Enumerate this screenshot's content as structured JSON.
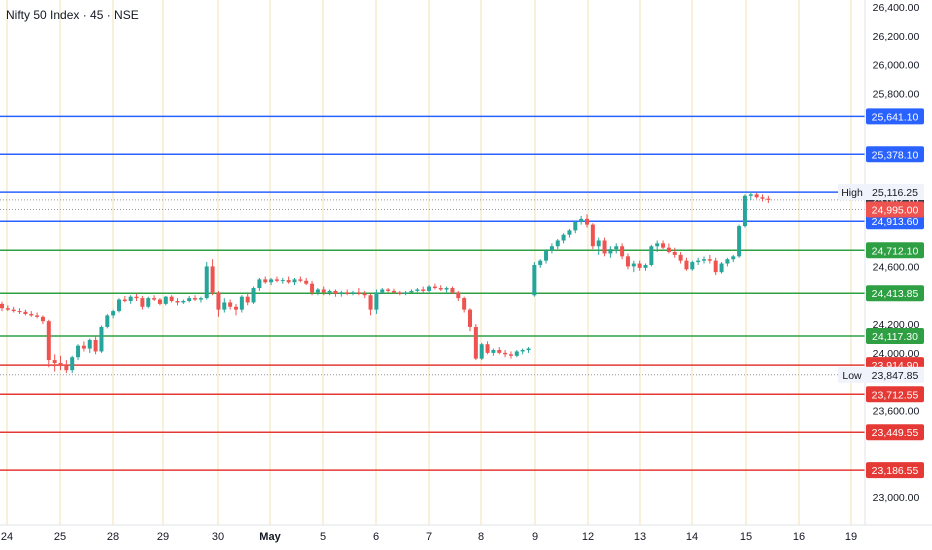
{
  "header": {
    "title": "Nifty 50 Index · 45 · NSE"
  },
  "colors": {
    "up": "#26a69a",
    "down": "#ef5350",
    "blue_line": "#2962ff",
    "green_line": "#2ea043",
    "red_line": "#e53935",
    "grid": "#f3e0b5",
    "axis_text": "#131722",
    "last_price": "#363a45"
  },
  "chart_data": {
    "type": "candlestick",
    "title": "Nifty 50 Index · 45 · NSE",
    "ylim": [
      22900,
      26450
    ],
    "yticks": [
      26400,
      26200,
      26000,
      25800,
      24600,
      24200,
      24000,
      23600,
      23000
    ],
    "ytick_labels": [
      "26,400.00",
      "26,200.00",
      "26,000.00",
      "25,800.00",
      "24,600.00",
      "24,200.00",
      "24,000.00",
      "23,600.00",
      "23,000.00"
    ],
    "x_labels": [
      "24",
      "25",
      "28",
      "29",
      "30",
      "May",
      "5",
      "6",
      "7",
      "8",
      "9",
      "12",
      "13",
      "14",
      "15",
      "16",
      "19"
    ],
    "levels": [
      {
        "value": 25641.1,
        "label": "25,641.10",
        "color": "blue"
      },
      {
        "value": 25378.1,
        "label": "25,378.10",
        "color": "blue"
      },
      {
        "value": 25115.15,
        "label": "25,115.15",
        "color": "blue"
      },
      {
        "value": 24913.6,
        "label": "24,913.60",
        "color": "blue"
      },
      {
        "value": 24712.1,
        "label": "24,712.10",
        "color": "green"
      },
      {
        "value": 24413.85,
        "label": "24,413.85",
        "color": "green"
      },
      {
        "value": 24117.3,
        "label": "24,117.30",
        "color": "green"
      },
      {
        "value": 23914.9,
        "label": "23,914.90",
        "color": "red"
      },
      {
        "value": 23712.55,
        "label": "23,712.55",
        "color": "red"
      },
      {
        "value": 23449.55,
        "label": "23,449.55",
        "color": "red"
      },
      {
        "value": 23186.55,
        "label": "23,186.55",
        "color": "red"
      }
    ],
    "high": {
      "text": "High",
      "value": 25116.25,
      "label": "25,116.25"
    },
    "low": {
      "text": "Low",
      "value": 23847.85,
      "label": "23,847.85"
    },
    "last_price": {
      "value": 25062.1,
      "label": "25,062.10"
    },
    "pre_close": {
      "value": 24995.0,
      "label": "24,995.00"
    },
    "ohlc": [
      [
        24340,
        24355,
        24290,
        24310
      ],
      [
        24310,
        24330,
        24290,
        24300
      ],
      [
        24300,
        24320,
        24280,
        24290
      ],
      [
        24290,
        24310,
        24270,
        24285
      ],
      [
        24285,
        24300,
        24260,
        24270
      ],
      [
        24270,
        24290,
        24250,
        24260
      ],
      [
        24260,
        24280,
        24240,
        24250
      ],
      [
        24250,
        24260,
        24200,
        24220
      ],
      [
        24220,
        24230,
        23900,
        23950
      ],
      [
        23950,
        23990,
        23870,
        23930
      ],
      [
        23930,
        23980,
        23880,
        23910
      ],
      [
        23910,
        23950,
        23860,
        23880
      ],
      [
        23880,
        23980,
        23860,
        23970
      ],
      [
        23970,
        24060,
        23950,
        24050
      ],
      [
        24050,
        24080,
        24010,
        24030
      ],
      [
        24030,
        24100,
        24000,
        24090
      ],
      [
        24090,
        24120,
        23990,
        24010
      ],
      [
        24010,
        24190,
        24000,
        24180
      ],
      [
        24180,
        24270,
        24170,
        24260
      ],
      [
        24260,
        24300,
        24240,
        24290
      ],
      [
        24290,
        24380,
        24280,
        24370
      ],
      [
        24370,
        24395,
        24350,
        24360
      ],
      [
        24360,
        24400,
        24340,
        24390
      ],
      [
        24390,
        24410,
        24360,
        24380
      ],
      [
        24380,
        24395,
        24300,
        24320
      ],
      [
        24320,
        24390,
        24310,
        24380
      ],
      [
        24380,
        24400,
        24360,
        24370
      ],
      [
        24370,
        24380,
        24330,
        24340
      ],
      [
        24340,
        24395,
        24330,
        24390
      ],
      [
        24390,
        24400,
        24350,
        24360
      ],
      [
        24360,
        24380,
        24330,
        24350
      ],
      [
        24350,
        24370,
        24340,
        24360
      ],
      [
        24360,
        24395,
        24350,
        24380
      ],
      [
        24380,
        24400,
        24360,
        24370
      ],
      [
        24370,
        24390,
        24350,
        24380
      ],
      [
        24380,
        24630,
        24370,
        24600
      ],
      [
        24600,
        24650,
        24400,
        24420
      ],
      [
        24420,
        24430,
        24250,
        24300
      ],
      [
        24300,
        24380,
        24280,
        24350
      ],
      [
        24350,
        24370,
        24300,
        24320
      ],
      [
        24320,
        24340,
        24260,
        24300
      ],
      [
        24300,
        24400,
        24280,
        24390
      ],
      [
        24390,
        24420,
        24330,
        24350
      ],
      [
        24350,
        24460,
        24340,
        24450
      ],
      [
        24450,
        24520,
        24430,
        24510
      ],
      [
        24510,
        24530,
        24480,
        24490
      ],
      [
        24490,
        24520,
        24470,
        24510
      ],
      [
        24510,
        24530,
        24490,
        24500
      ],
      [
        24500,
        24520,
        24480,
        24505
      ],
      [
        24505,
        24530,
        24480,
        24490
      ],
      [
        24490,
        24520,
        24470,
        24510
      ],
      [
        24510,
        24530,
        24490,
        24500
      ],
      [
        24500,
        24520,
        24470,
        24480
      ],
      [
        24480,
        24500,
        24400,
        24420
      ],
      [
        24420,
        24450,
        24400,
        24440
      ],
      [
        24440,
        24460,
        24400,
        24420
      ],
      [
        24420,
        24440,
        24400,
        24430
      ],
      [
        24430,
        24440,
        24390,
        24410
      ],
      [
        24410,
        24430,
        24390,
        24420
      ],
      [
        24420,
        24440,
        24400,
        24410
      ],
      [
        24410,
        24430,
        24400,
        24420
      ],
      [
        24420,
        24450,
        24400,
        24410
      ],
      [
        24410,
        24430,
        24380,
        24400
      ],
      [
        24400,
        24410,
        24260,
        24300
      ],
      [
        24300,
        24440,
        24270,
        24420
      ],
      [
        24420,
        24450,
        24410,
        24440
      ],
      [
        24440,
        24450,
        24420,
        24430
      ],
      [
        24430,
        24445,
        24410,
        24420
      ],
      [
        24420,
        24430,
        24400,
        24410
      ],
      [
        24410,
        24430,
        24400,
        24420
      ],
      [
        24420,
        24440,
        24410,
        24430
      ],
      [
        24430,
        24450,
        24420,
        24440
      ],
      [
        24440,
        24460,
        24420,
        24430
      ],
      [
        24430,
        24470,
        24420,
        24460
      ],
      [
        24460,
        24480,
        24440,
        24450
      ],
      [
        24450,
        24470,
        24430,
        24440
      ],
      [
        24440,
        24460,
        24420,
        24450
      ],
      [
        24450,
        24460,
        24410,
        24420
      ],
      [
        24420,
        24430,
        24360,
        24380
      ],
      [
        24380,
        24390,
        24280,
        24300
      ],
      [
        24300,
        24310,
        24150,
        24180
      ],
      [
        24180,
        24200,
        23950,
        23960
      ],
      [
        23960,
        24070,
        23950,
        24060
      ],
      [
        24060,
        24080,
        23990,
        24000
      ],
      [
        24000,
        24030,
        23980,
        24020
      ],
      [
        24020,
        24040,
        23990,
        24000
      ],
      [
        24000,
        24020,
        23970,
        23990
      ],
      [
        23990,
        24010,
        23960,
        23980
      ],
      [
        23980,
        24020,
        23970,
        24010
      ],
      [
        24010,
        24030,
        23990,
        24020
      ],
      [
        24020,
        24040,
        24000,
        24030
      ],
      [
        24400,
        24630,
        24390,
        24610
      ],
      [
        24610,
        24650,
        24590,
        24640
      ],
      [
        24640,
        24720,
        24620,
        24710
      ],
      [
        24710,
        24760,
        24690,
        24740
      ],
      [
        24740,
        24790,
        24720,
        24780
      ],
      [
        24780,
        24830,
        24760,
        24820
      ],
      [
        24820,
        24860,
        24800,
        24850
      ],
      [
        24850,
        24920,
        24830,
        24910
      ],
      [
        24910,
        24950,
        24890,
        24930
      ],
      [
        24930,
        24960,
        24870,
        24890
      ],
      [
        24890,
        24900,
        24720,
        24740
      ],
      [
        24740,
        24800,
        24680,
        24780
      ],
      [
        24780,
        24800,
        24670,
        24690
      ],
      [
        24690,
        24740,
        24660,
        24720
      ],
      [
        24720,
        24760,
        24690,
        24740
      ],
      [
        24740,
        24760,
        24650,
        24670
      ],
      [
        24670,
        24690,
        24580,
        24600
      ],
      [
        24600,
        24640,
        24560,
        24620
      ],
      [
        24620,
        24640,
        24570,
        24590
      ],
      [
        24590,
        24620,
        24570,
        24610
      ],
      [
        24610,
        24750,
        24600,
        24740
      ],
      [
        24740,
        24780,
        24700,
        24760
      ],
      [
        24760,
        24780,
        24720,
        24730
      ],
      [
        24730,
        24760,
        24690,
        24700
      ],
      [
        24700,
        24730,
        24660,
        24680
      ],
      [
        24680,
        24700,
        24620,
        24640
      ],
      [
        24640,
        24660,
        24570,
        24580
      ],
      [
        24580,
        24640,
        24570,
        24630
      ],
      [
        24630,
        24660,
        24610,
        24640
      ],
      [
        24640,
        24670,
        24620,
        24650
      ],
      [
        24650,
        24680,
        24620,
        24640
      ],
      [
        24640,
        24660,
        24540,
        24560
      ],
      [
        24560,
        24630,
        24550,
        24620
      ],
      [
        24620,
        24660,
        24600,
        24650
      ],
      [
        24650,
        24680,
        24630,
        24670
      ],
      [
        24670,
        24890,
        24660,
        24880
      ],
      [
        24880,
        25100,
        24870,
        25090
      ],
      [
        25090,
        25116,
        25060,
        25100
      ],
      [
        25100,
        25110,
        25070,
        25080
      ],
      [
        25080,
        25100,
        25050,
        25070
      ],
      [
        25070,
        25090,
        25040,
        25062
      ]
    ]
  }
}
